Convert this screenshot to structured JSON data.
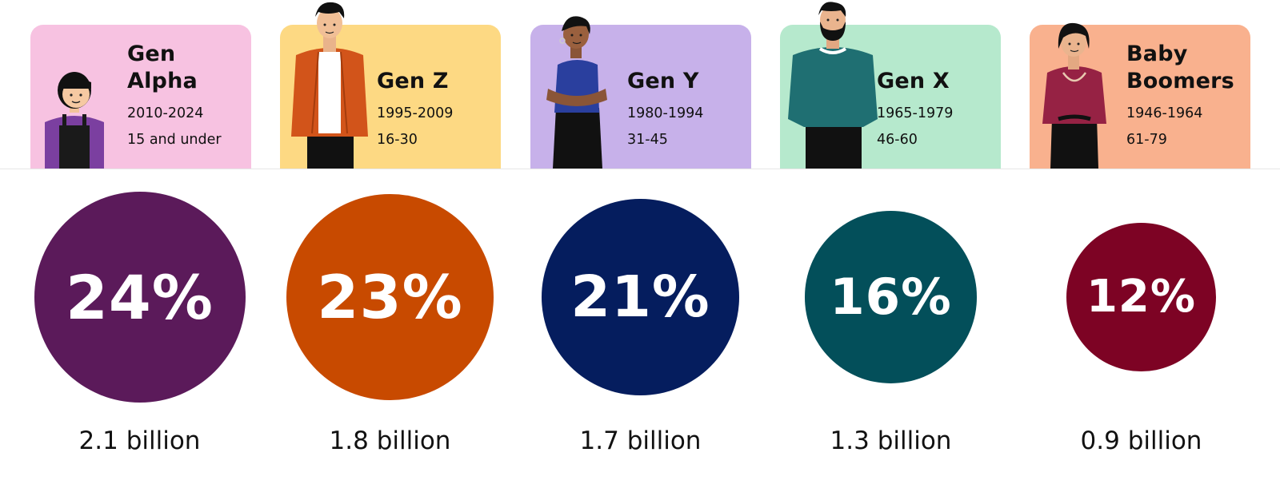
{
  "colors": {
    "card_backgrounds": [
      "#f7c2e1",
      "#fdd983",
      "#c7b1ea",
      "#b6e9cd",
      "#f9b18e"
    ],
    "bubble_colors": [
      "#5b1a5a",
      "#c84a00",
      "#051d5e",
      "#034f5a",
      "#7d0324"
    ]
  },
  "generations": [
    {
      "name_lines": [
        "Gen",
        "Alpha"
      ],
      "years": "2010-2024",
      "ages": "15 and under",
      "percent": "24%",
      "population": "2.1 billion",
      "illustration_icon": "girl-overalls-icon"
    },
    {
      "name_lines": [
        "Gen Z"
      ],
      "years": "1995-2009",
      "ages": "16-30",
      "percent": "23%",
      "population": "1.8 billion",
      "illustration_icon": "young-man-jacket-icon"
    },
    {
      "name_lines": [
        "Gen Y"
      ],
      "years": "1980-1994",
      "ages": "31-45",
      "percent": "21%",
      "population": "1.7 billion",
      "illustration_icon": "woman-arms-crossed-icon"
    },
    {
      "name_lines": [
        "Gen X"
      ],
      "years": "1965-1979",
      "ages": "46-60",
      "percent": "16%",
      "population": "1.3 billion",
      "illustration_icon": "bearded-man-sweater-icon"
    },
    {
      "name_lines": [
        "Baby",
        "Boomers"
      ],
      "years": "1946-1964",
      "ages": "61-79",
      "percent": "12%",
      "population": "0.9 billion",
      "illustration_icon": "older-woman-necklace-icon"
    }
  ],
  "chart_data": {
    "type": "bubble",
    "categories": [
      "Gen Alpha",
      "Gen Z",
      "Gen Y",
      "Gen X",
      "Baby Boomers"
    ],
    "values": [
      24,
      23,
      21,
      16,
      12
    ],
    "value_labels": [
      "24%",
      "23%",
      "21%",
      "16%",
      "12%"
    ],
    "population_labels": [
      "2.1 billion",
      "1.8 billion",
      "1.7 billion",
      "1.3 billion",
      "0.9 billion"
    ],
    "title": "",
    "legend": "none",
    "grid": false
  }
}
